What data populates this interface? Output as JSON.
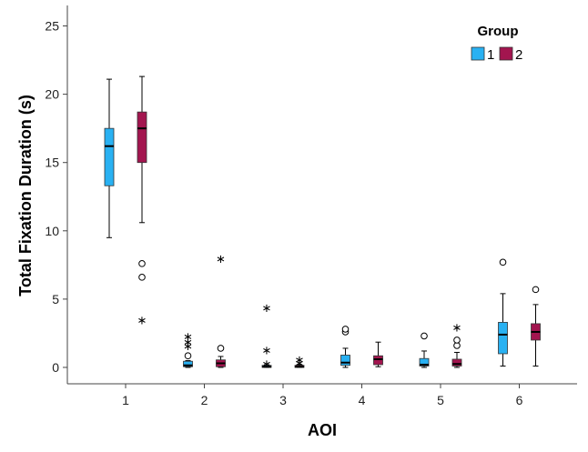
{
  "chart_data": {
    "type": "boxplot",
    "xlabel": "AOI",
    "ylabel": "Total Fixation Duration (s)",
    "categories": [
      "1",
      "2",
      "3",
      "4",
      "5",
      "6"
    ],
    "ylim": [
      -1.2,
      26.5
    ],
    "yticks": [
      0,
      5,
      10,
      15,
      20,
      25
    ],
    "grid": false,
    "legend": {
      "title": "Group",
      "position": "top-right"
    },
    "series": [
      {
        "name": "1",
        "color": "#29B1F2",
        "boxes": [
          {
            "min": 9.5,
            "q1": 13.3,
            "median": 16.2,
            "q3": 17.5,
            "max": 21.1,
            "outliers": [],
            "extremes": []
          },
          {
            "min": 0.0,
            "q1": 0.05,
            "median": 0.15,
            "q3": 0.45,
            "max": 0.5,
            "outliers": [
              0.85
            ],
            "extremes": [
              1.6,
              1.9,
              2.3
            ]
          },
          {
            "min": 0.0,
            "q1": 0.0,
            "median": 0.05,
            "q3": 0.15,
            "max": 0.2,
            "outliers": [],
            "extremes": [
              0.3,
              1.3,
              4.4
            ]
          },
          {
            "min": 0.0,
            "q1": 0.15,
            "median": 0.35,
            "q3": 0.9,
            "max": 1.4,
            "outliers": [
              2.6,
              2.8
            ],
            "extremes": []
          },
          {
            "min": 0.0,
            "q1": 0.1,
            "median": 0.2,
            "q3": 0.65,
            "max": 1.2,
            "outliers": [
              2.3
            ],
            "extremes": []
          },
          {
            "min": 0.1,
            "q1": 1.0,
            "median": 2.4,
            "q3": 3.3,
            "max": 5.4,
            "outliers": [
              7.7
            ],
            "extremes": []
          }
        ]
      },
      {
        "name": "2",
        "color": "#A3154F",
        "boxes": [
          {
            "min": 10.6,
            "q1": 15.0,
            "median": 17.5,
            "q3": 18.7,
            "max": 21.3,
            "outliers": [
              6.6,
              7.6
            ],
            "extremes": [
              3.5
            ]
          },
          {
            "min": 0.0,
            "q1": 0.05,
            "median": 0.3,
            "q3": 0.55,
            "max": 0.8,
            "outliers": [
              1.4
            ],
            "extremes": [
              8.0
            ]
          },
          {
            "min": 0.0,
            "q1": 0.0,
            "median": 0.05,
            "q3": 0.15,
            "max": 0.2,
            "outliers": [],
            "extremes": [
              0.35,
              0.6
            ]
          },
          {
            "min": 0.05,
            "q1": 0.2,
            "median": 0.6,
            "q3": 0.85,
            "max": 1.85,
            "outliers": [],
            "extremes": []
          },
          {
            "min": 0.0,
            "q1": 0.1,
            "median": 0.25,
            "q3": 0.6,
            "max": 1.1,
            "outliers": [
              1.6,
              2.0
            ],
            "extremes": [
              2.95
            ]
          },
          {
            "min": 0.1,
            "q1": 2.0,
            "median": 2.6,
            "q3": 3.2,
            "max": 4.6,
            "outliers": [
              5.7
            ],
            "extremes": []
          }
        ]
      }
    ]
  }
}
